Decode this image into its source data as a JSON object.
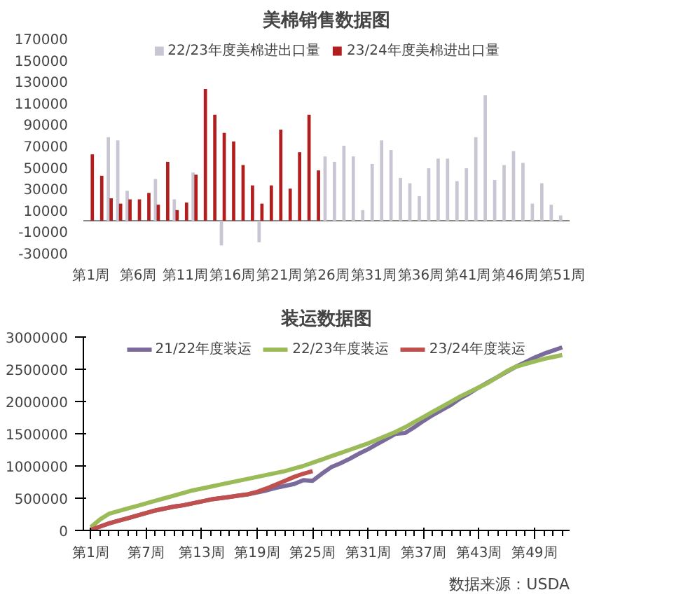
{
  "chart_data": [
    {
      "type": "bar",
      "title": "美棉销售数据图",
      "legend": "top",
      "categories": [
        "第1周",
        null,
        null,
        null,
        null,
        "第6周",
        null,
        null,
        null,
        null,
        "第11周",
        null,
        null,
        null,
        null,
        "第16周",
        null,
        null,
        null,
        null,
        "第21周",
        null,
        null,
        null,
        null,
        "第26周",
        null,
        null,
        null,
        null,
        "第31周",
        null,
        null,
        null,
        null,
        "第36周",
        null,
        null,
        null,
        null,
        "第41周",
        null,
        null,
        null,
        null,
        "第46周",
        null,
        null,
        null,
        null,
        "第51周"
      ],
      "ylim": [
        -30000,
        170000
      ],
      "yticks": [
        -30000,
        -10000,
        10000,
        30000,
        50000,
        70000,
        90000,
        110000,
        130000,
        150000,
        170000
      ],
      "series": [
        {
          "name": "22/23年度美棉进出口量",
          "color": "#c9c5d3",
          "values": [
            null,
            null,
            78000,
            75000,
            28000,
            null,
            null,
            39000,
            null,
            20000,
            null,
            45000,
            null,
            null,
            -23000,
            null,
            null,
            null,
            -20000,
            null,
            null,
            null,
            null,
            null,
            null,
            60000,
            55000,
            70000,
            60000,
            10000,
            53000,
            75000,
            66000,
            40000,
            35000,
            23000,
            49000,
            58000,
            58000,
            37000,
            49000,
            78000,
            117000,
            38000,
            52000,
            65000,
            54000,
            16000,
            35000,
            15000,
            5000
          ]
        },
        {
          "name": "23/24年度美棉进出口量",
          "color": "#b01e1e",
          "values": [
            62000,
            42000,
            21000,
            16000,
            20000,
            20000,
            26000,
            15000,
            55000,
            10000,
            17000,
            43000,
            123000,
            99000,
            82000,
            74000,
            52000,
            33000,
            16000,
            33000,
            85000,
            30000,
            64000,
            99000,
            47000,
            null,
            null,
            null,
            null,
            null,
            null,
            null,
            null,
            null,
            null,
            null,
            null,
            null,
            null,
            null,
            null,
            null,
            null,
            null,
            null,
            null,
            null,
            null,
            null,
            null,
            null
          ]
        }
      ]
    },
    {
      "type": "line",
      "title": "装运数据图",
      "legend": "top",
      "categories": [
        "第1周",
        null,
        null,
        null,
        null,
        null,
        "第7周",
        null,
        null,
        null,
        null,
        null,
        "第13周",
        null,
        null,
        null,
        null,
        null,
        "第19周",
        null,
        null,
        null,
        null,
        null,
        "第25周",
        null,
        null,
        null,
        null,
        null,
        "第31周",
        null,
        null,
        null,
        null,
        null,
        "第37周",
        null,
        null,
        null,
        null,
        null,
        "第43周",
        null,
        null,
        null,
        null,
        null,
        "第49周",
        null,
        null,
        null
      ],
      "ylim": [
        0,
        3000000
      ],
      "yticks": [
        0,
        500000,
        1000000,
        1500000,
        2000000,
        2500000,
        3000000
      ],
      "annotations": [
        "数据来源：USDA"
      ],
      "series": [
        {
          "name": "21/22年度装运",
          "color": "#7b6a9c",
          "values": [
            10000,
            60000,
            110000,
            150000,
            190000,
            230000,
            270000,
            310000,
            340000,
            370000,
            390000,
            420000,
            450000,
            480000,
            500000,
            520000,
            540000,
            560000,
            590000,
            620000,
            660000,
            690000,
            720000,
            780000,
            770000,
            880000,
            980000,
            1040000,
            1110000,
            1190000,
            1260000,
            1340000,
            1420000,
            1500000,
            1510000,
            1600000,
            1700000,
            1790000,
            1870000,
            1950000,
            2050000,
            2130000,
            2220000,
            2300000,
            2380000,
            2460000,
            2540000,
            2610000,
            2680000,
            2740000,
            2790000,
            2840000
          ]
        },
        {
          "name": "22/23年度装运",
          "color": "#9bbb59",
          "values": [
            50000,
            170000,
            260000,
            300000,
            340000,
            380000,
            420000,
            460000,
            500000,
            540000,
            580000,
            620000,
            650000,
            680000,
            710000,
            740000,
            770000,
            800000,
            830000,
            860000,
            890000,
            920000,
            960000,
            1000000,
            1050000,
            1100000,
            1150000,
            1200000,
            1250000,
            1300000,
            1350000,
            1410000,
            1470000,
            1530000,
            1600000,
            1680000,
            1760000,
            1840000,
            1920000,
            2000000,
            2080000,
            2150000,
            2220000,
            2290000,
            2380000,
            2470000,
            2540000,
            2580000,
            2620000,
            2660000,
            2690000,
            2720000
          ]
        },
        {
          "name": "23/24年度装运",
          "color": "#c0504d",
          "values": [
            10000,
            60000,
            110000,
            150000,
            190000,
            230000,
            270000,
            310000,
            340000,
            370000,
            390000,
            420000,
            450000,
            480000,
            500000,
            520000,
            540000,
            560000,
            600000,
            650000,
            710000,
            770000,
            830000,
            880000,
            920000,
            null,
            null,
            null,
            null,
            null,
            null,
            null,
            null,
            null,
            null,
            null,
            null,
            null,
            null,
            null,
            null,
            null,
            null,
            null,
            null,
            null,
            null,
            null,
            null,
            null,
            null,
            null
          ]
        }
      ]
    }
  ]
}
